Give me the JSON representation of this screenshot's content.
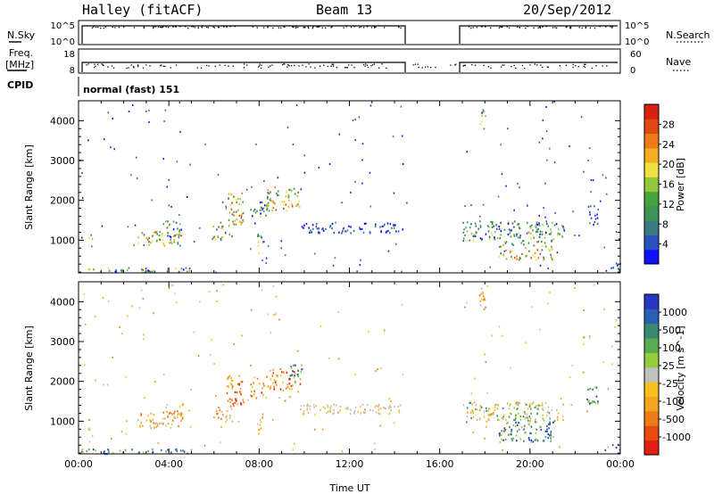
{
  "header": {
    "station": "Halley (fitACF)",
    "beam": "Beam 13",
    "date": "20/Sep/2012"
  },
  "panels": {
    "nsky": {
      "left_label": "N.Sky",
      "right_label": "N.Search",
      "left_ticks": [
        "10^5",
        "10^0"
      ],
      "right_ticks": [
        "10^5",
        "10^0"
      ]
    },
    "freq": {
      "left_label_1": "Freq.",
      "left_label_2": "[MHz]",
      "right_label": "Nave",
      "left_ticks": [
        "18",
        "8"
      ],
      "right_ticks": [
        "60",
        "0"
      ]
    },
    "cpid": {
      "label": "CPID",
      "text": "normal (fast) 151"
    }
  },
  "chart_data": [
    {
      "type": "heatmap",
      "name": "power",
      "ylabel": "Slant Range [km]",
      "y_ticks": [
        "1000",
        "2000",
        "3000",
        "4000"
      ],
      "ylim": [
        180,
        4500
      ],
      "xlim": [
        0,
        24
      ],
      "colorbar": {
        "label": "Power [dB]",
        "tick_labels": [
          "4",
          "8",
          "12",
          "16",
          "20",
          "24",
          "28"
        ],
        "colors": [
          "#1010ff",
          "#2a52be",
          "#3a7a82",
          "#3c9455",
          "#46a53a",
          "#90c83a",
          "#f0e040",
          "#f3ad20",
          "#ee7a1a",
          "#e04a10",
          "#d62010"
        ]
      },
      "echo_regions": [
        {
          "t": [
            0.4,
            0.6
          ],
          "r": [
            800,
            1150
          ],
          "level": "mid"
        },
        {
          "t": [
            2.6,
            4.6
          ],
          "r": [
            850,
            1250
          ],
          "level": "high"
        },
        {
          "t": [
            3.8,
            4.6
          ],
          "r": [
            1100,
            1500
          ],
          "level": "mid"
        },
        {
          "t": [
            5.9,
            6.8
          ],
          "r": [
            1000,
            1400
          ],
          "level": "high"
        },
        {
          "t": [
            6.5,
            7.3
          ],
          "r": [
            1400,
            2200
          ],
          "level": "high"
        },
        {
          "t": [
            7.6,
            8.4
          ],
          "r": [
            1600,
            2000
          ],
          "level": "mid"
        },
        {
          "t": [
            8.3,
            9.8
          ],
          "r": [
            1750,
            2350
          ],
          "level": "high"
        },
        {
          "t": [
            7.9,
            8.2
          ],
          "r": [
            700,
            1200
          ],
          "level": "mid"
        },
        {
          "t": [
            9.8,
            14.4
          ],
          "r": [
            1200,
            1450
          ],
          "level": "low"
        },
        {
          "t": [
            17.7,
            18.0
          ],
          "r": [
            3800,
            4400
          ],
          "level": "mid"
        },
        {
          "t": [
            17.0,
            21.5
          ],
          "r": [
            1000,
            1500
          ],
          "level": "mid"
        },
        {
          "t": [
            18.6,
            21.0
          ],
          "r": [
            500,
            1000
          ],
          "level": "high"
        },
        {
          "t": [
            0.0,
            5.0
          ],
          "r": [
            200,
            330
          ],
          "level": "mid"
        },
        {
          "t": [
            23.3,
            24.0
          ],
          "r": [
            250,
            450
          ],
          "level": "low"
        },
        {
          "t": [
            22.5,
            23.0
          ],
          "r": [
            1400,
            1900
          ],
          "level": "low"
        }
      ]
    },
    {
      "type": "heatmap",
      "name": "velocity",
      "xlabel": "Time UT",
      "ylabel": "Slant Range [km]",
      "x_ticks": [
        "00:00",
        "04:00",
        "08:00",
        "12:00",
        "16:00",
        "20:00",
        "00:00"
      ],
      "y_ticks": [
        "1000",
        "2000",
        "3000",
        "4000"
      ],
      "ylim": [
        180,
        4500
      ],
      "xlim": [
        0,
        24
      ],
      "colorbar": {
        "label": "Velocity [m s^-1]",
        "tick_labels": [
          "1000",
          "500",
          "100",
          "25",
          "-25",
          "-100",
          "-500",
          "-1000"
        ],
        "colors": [
          "#2838c0",
          "#2a60b2",
          "#3a8a70",
          "#5aaa50",
          "#96cc3c",
          "#c0c0c0",
          "#f7c020",
          "#f4a420",
          "#ef7a18",
          "#e94a10",
          "#e02010"
        ]
      },
      "echo_regions": [
        {
          "t": [
            0.4,
            0.6
          ],
          "r": [
            800,
            1150
          ],
          "level": "neg"
        },
        {
          "t": [
            2.6,
            4.6
          ],
          "r": [
            850,
            1250
          ],
          "level": "neg"
        },
        {
          "t": [
            3.8,
            4.6
          ],
          "r": [
            1100,
            1500
          ],
          "level": "neg"
        },
        {
          "t": [
            5.9,
            6.8
          ],
          "r": [
            1000,
            1400
          ],
          "level": "neg"
        },
        {
          "t": [
            6.5,
            7.3
          ],
          "r": [
            1400,
            2200
          ],
          "level": "negstrong"
        },
        {
          "t": [
            7.6,
            8.4
          ],
          "r": [
            1600,
            2000
          ],
          "level": "negstrong"
        },
        {
          "t": [
            8.3,
            9.8
          ],
          "r": [
            1750,
            2350
          ],
          "level": "negstrong"
        },
        {
          "t": [
            9.3,
            9.9
          ],
          "r": [
            2000,
            2450
          ],
          "level": "pos"
        },
        {
          "t": [
            7.9,
            8.2
          ],
          "r": [
            700,
            1200
          ],
          "level": "neg"
        },
        {
          "t": [
            9.8,
            14.4
          ],
          "r": [
            1200,
            1450
          ],
          "level": "zero"
        },
        {
          "t": [
            17.7,
            18.0
          ],
          "r": [
            3800,
            4400
          ],
          "level": "neg"
        },
        {
          "t": [
            17.0,
            21.5
          ],
          "r": [
            1000,
            1500
          ],
          "level": "mixed"
        },
        {
          "t": [
            18.6,
            21.0
          ],
          "r": [
            500,
            1000
          ],
          "level": "pos"
        },
        {
          "t": [
            0.0,
            5.0
          ],
          "r": [
            200,
            330
          ],
          "level": "pos"
        },
        {
          "t": [
            23.3,
            24.0
          ],
          "r": [
            250,
            450
          ],
          "level": "pos"
        },
        {
          "t": [
            22.5,
            23.0
          ],
          "r": [
            1400,
            1900
          ],
          "level": "pos"
        }
      ]
    }
  ]
}
